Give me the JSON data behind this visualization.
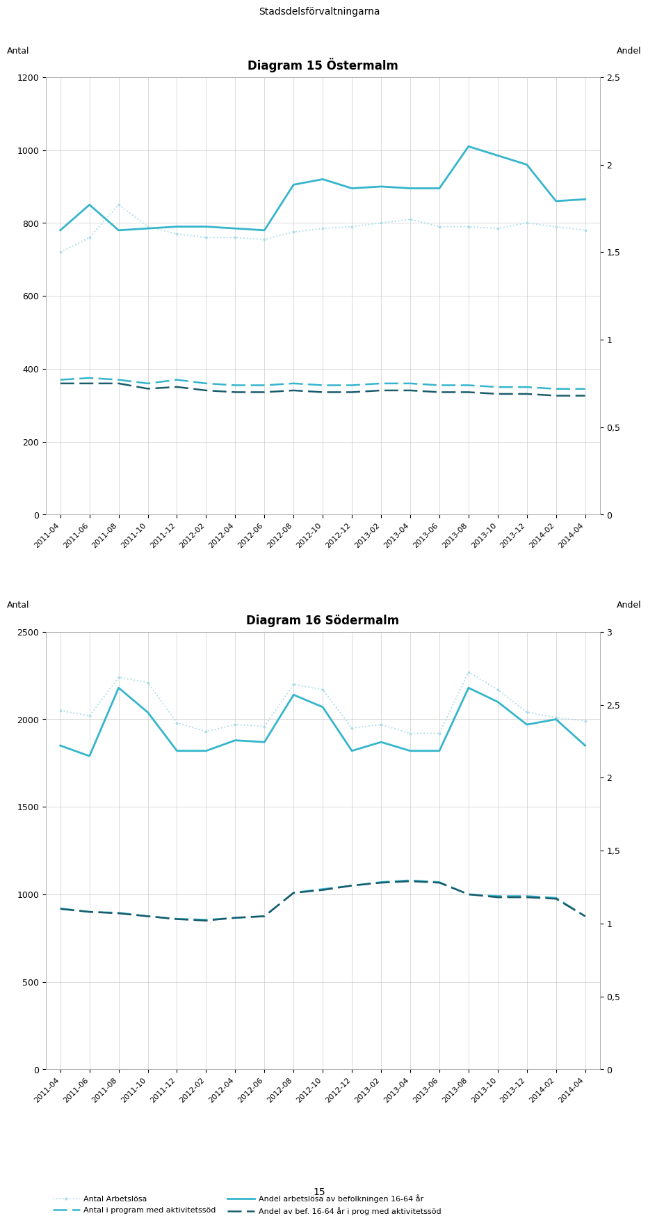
{
  "page_title": "Stadsdelsförvaltningarna",
  "page_number": "15",
  "x_labels": [
    "2011-04",
    "2011-06",
    "2011-08",
    "2011-10",
    "2011-12",
    "2012-02",
    "2012-04",
    "2012-06",
    "2012-08",
    "2012-10",
    "2012-12",
    "2013-02",
    "2013-04",
    "2013-06",
    "2013-08",
    "2013-10",
    "2013-12",
    "2014-02",
    "2014-04"
  ],
  "diagram1": {
    "title": "Diagram 15 Östermalm",
    "ylabel_left": "Antal",
    "ylabel_right": "Andel",
    "ylim_left": [
      0,
      1200
    ],
    "ylim_right": [
      0,
      2.5
    ],
    "yticks_left": [
      0,
      200,
      400,
      600,
      800,
      1000,
      1200
    ],
    "yticks_right": [
      0,
      0.5,
      1.0,
      1.5,
      2.0,
      2.5
    ],
    "antal_arbetslosa": [
      720,
      760,
      850,
      790,
      770,
      760,
      760,
      755,
      775,
      785,
      790,
      800,
      810,
      790,
      790,
      785,
      800,
      790,
      780
    ],
    "andel_arbetslosa": [
      780,
      850,
      780,
      785,
      790,
      790,
      785,
      780,
      905,
      920,
      895,
      900,
      895,
      895,
      1010,
      985,
      960,
      860,
      865
    ],
    "antal_program": [
      370,
      375,
      370,
      360,
      370,
      360,
      355,
      355,
      360,
      355,
      355,
      360,
      360,
      355,
      355,
      350,
      350,
      345,
      345
    ],
    "andel_program": [
      0.75,
      0.75,
      0.75,
      0.72,
      0.73,
      0.71,
      0.7,
      0.7,
      0.71,
      0.7,
      0.7,
      0.71,
      0.71,
      0.7,
      0.7,
      0.69,
      0.69,
      0.68,
      0.68
    ]
  },
  "diagram2": {
    "title": "Diagram 16 Södermalm",
    "ylabel_left": "Antal",
    "ylabel_right": "Andel",
    "ylim_left": [
      0,
      2500
    ],
    "ylim_right": [
      0,
      3.0
    ],
    "yticks_left": [
      0,
      500,
      1000,
      1500,
      2000,
      2500
    ],
    "yticks_right": [
      0,
      0.5,
      1.0,
      1.5,
      2.0,
      2.5,
      3.0
    ],
    "antal_arbetslosa": [
      2050,
      2020,
      2240,
      2210,
      1980,
      1930,
      1970,
      1960,
      2200,
      2170,
      1950,
      1970,
      1920,
      1920,
      2270,
      2170,
      2040,
      2010,
      1990
    ],
    "andel_arbetslosa": [
      1850,
      1790,
      2180,
      2040,
      1820,
      1820,
      1880,
      1870,
      2140,
      2070,
      1820,
      1870,
      1820,
      1820,
      2180,
      2100,
      1970,
      2000,
      1850
    ],
    "antal_program": [
      920,
      900,
      895,
      875,
      860,
      855,
      865,
      875,
      1010,
      1030,
      1050,
      1070,
      1080,
      1070,
      1000,
      990,
      990,
      980,
      875
    ],
    "andel_program": [
      1.1,
      1.08,
      1.07,
      1.05,
      1.03,
      1.02,
      1.04,
      1.05,
      1.21,
      1.23,
      1.26,
      1.28,
      1.29,
      1.28,
      1.2,
      1.18,
      1.18,
      1.17,
      1.05
    ]
  },
  "colors": {
    "antal_arbetslosa_line": "#aadce8",
    "andel_arbetslosa_line": "#35b5cc",
    "antal_program_line": "#35b5cc",
    "andel_program_line": "#1a5c6b"
  },
  "legend": {
    "label1": "Antal Arbetslösa",
    "label2": "Antal i program med aktivitetssöd",
    "label3": "Andel arbetslösa av befolkningen 16-64 år",
    "label4": "Andel av bef. 16-64 år i prog med aktivitetssöd"
  }
}
